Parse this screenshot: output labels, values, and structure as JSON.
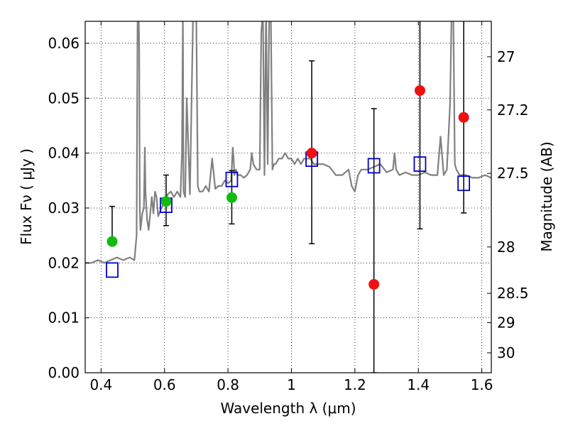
{
  "chart_data": {
    "type": "scatter",
    "xlabel": "Wavelength  λ (μm)",
    "ylabel": "Flux  Fν  ( μJy )",
    "y2label": "Magnitude (AB)",
    "xlim": [
      0.35,
      1.63
    ],
    "ylim": [
      0.0,
      0.064
    ],
    "grid": true,
    "x_ticks": [
      0.4,
      0.6,
      0.8,
      1.0,
      1.2,
      1.4,
      1.6
    ],
    "x_tick_labels": [
      "0.4",
      "0.6",
      "0.8",
      "1",
      "1.2",
      "1.4",
      "1.6"
    ],
    "y_ticks": [
      0.0,
      0.01,
      0.02,
      0.03,
      0.04,
      0.05,
      0.06
    ],
    "y_tick_labels": [
      "0.00",
      "0.01",
      "0.02",
      "0.03",
      "0.04",
      "0.05",
      "0.06"
    ],
    "mag_ticks": [
      27,
      27.2,
      27.5,
      28,
      28.5,
      29,
      30
    ],
    "mag_tick_labels": [
      "27",
      "27.2",
      "27.5",
      "28",
      "28.5",
      "29",
      "30"
    ],
    "colors": {
      "spectrum": "#808080",
      "green": "#11bb11",
      "red": "#ee1111",
      "model_box": "#0000cc",
      "error": "#000000"
    },
    "spectrum": {
      "x": [
        0.35,
        0.37,
        0.39,
        0.41,
        0.43,
        0.45,
        0.47,
        0.49,
        0.505,
        0.512,
        0.515,
        0.517,
        0.518,
        0.52,
        0.522,
        0.524,
        0.526,
        0.53,
        0.535,
        0.538,
        0.54,
        0.545,
        0.55,
        0.56,
        0.565,
        0.57,
        0.575,
        0.58,
        0.59,
        0.6,
        0.61,
        0.62,
        0.63,
        0.64,
        0.65,
        0.655,
        0.658,
        0.66,
        0.665,
        0.67,
        0.68,
        0.69,
        0.695,
        0.7,
        0.705,
        0.71,
        0.72,
        0.73,
        0.74,
        0.75,
        0.76,
        0.77,
        0.78,
        0.79,
        0.8,
        0.81,
        0.815,
        0.818,
        0.82,
        0.825,
        0.83,
        0.84,
        0.85,
        0.86,
        0.87,
        0.875,
        0.88,
        0.89,
        0.9,
        0.905,
        0.91,
        0.915,
        0.92,
        0.925,
        0.93,
        0.935,
        0.94,
        0.945,
        0.95,
        0.96,
        0.97,
        0.98,
        0.99,
        1.0,
        1.01,
        1.02,
        1.03,
        1.04,
        1.05,
        1.06,
        1.07,
        1.08,
        1.09,
        1.1,
        1.12,
        1.14,
        1.16,
        1.18,
        1.19,
        1.2,
        1.21,
        1.22,
        1.24,
        1.26,
        1.28,
        1.3,
        1.32,
        1.325,
        1.33,
        1.34,
        1.36,
        1.38,
        1.4,
        1.42,
        1.44,
        1.46,
        1.47,
        1.48,
        1.49,
        1.5,
        1.505,
        1.51,
        1.515,
        1.52,
        1.53,
        1.55,
        1.57,
        1.59,
        1.61,
        1.63
      ],
      "y": [
        0.02,
        0.02,
        0.0205,
        0.02,
        0.0205,
        0.021,
        0.0205,
        0.021,
        0.0205,
        0.025,
        0.0635,
        0.066,
        0.066,
        0.06,
        0.03,
        0.026,
        0.027,
        0.029,
        0.03,
        0.041,
        0.033,
        0.028,
        0.026,
        0.032,
        0.029,
        0.033,
        0.032,
        0.0285,
        0.03,
        0.031,
        0.0325,
        0.033,
        0.032,
        0.033,
        0.032,
        0.04,
        0.065,
        0.033,
        0.032,
        0.05,
        0.0325,
        0.065,
        0.066,
        0.066,
        0.034,
        0.033,
        0.033,
        0.034,
        0.033,
        0.039,
        0.0335,
        0.034,
        0.034,
        0.035,
        0.0345,
        0.035,
        0.041,
        0.039,
        0.036,
        0.037,
        0.036,
        0.036,
        0.0355,
        0.036,
        0.037,
        0.04,
        0.038,
        0.037,
        0.037,
        0.062,
        0.066,
        0.036,
        0.066,
        0.038,
        0.066,
        0.066,
        0.037,
        0.038,
        0.038,
        0.039,
        0.039,
        0.04,
        0.039,
        0.039,
        0.038,
        0.039,
        0.038,
        0.039,
        0.039,
        0.039,
        0.038,
        0.038,
        0.038,
        0.038,
        0.0375,
        0.036,
        0.036,
        0.037,
        0.034,
        0.033,
        0.036,
        0.037,
        0.037,
        0.0375,
        0.038,
        0.0365,
        0.037,
        0.04,
        0.037,
        0.036,
        0.0365,
        0.036,
        0.036,
        0.0365,
        0.036,
        0.036,
        0.043,
        0.036,
        0.037,
        0.049,
        0.066,
        0.066,
        0.038,
        0.037,
        0.036,
        0.036,
        0.0355,
        0.0355,
        0.036,
        0.0355
      ]
    },
    "green_points": {
      "x": [
        0.435,
        0.605,
        0.812
      ],
      "y": [
        0.0239,
        0.0312,
        0.0319
      ],
      "err_lo": [
        null,
        0.0268,
        0.0271
      ],
      "err_hi": [
        0.0303,
        0.036,
        0.0368
      ]
    },
    "red_points": {
      "x": [
        1.064,
        1.26,
        1.405,
        1.543
      ],
      "y": [
        0.04,
        0.0161,
        0.0514,
        0.0465
      ],
      "err_lo": [
        0.0235,
        0.0,
        0.0262,
        0.0291
      ],
      "err_hi": [
        0.0568,
        0.0481,
        0.066,
        0.066
      ]
    },
    "model_boxes": {
      "x": [
        0.435,
        0.605,
        0.812,
        1.064,
        1.26,
        1.405,
        1.543
      ],
      "y": [
        0.0187,
        0.0305,
        0.0352,
        0.0389,
        0.0377,
        0.038,
        0.0345
      ]
    }
  }
}
